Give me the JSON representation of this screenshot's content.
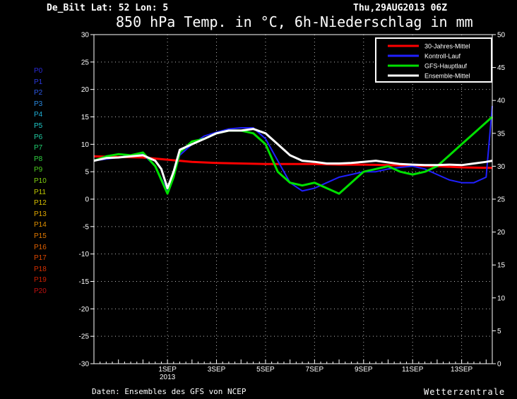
{
  "header": {
    "station": "De_Bilt  Lat: 52 Lon: 5",
    "datetime": "Thu,29AUG2013 06Z",
    "title": "850 hPa Temp. in °C, 6h-Niederschlag in mm"
  },
  "footer": {
    "source": "Daten: Ensembles des GFS von NCEP",
    "brand": "Wetterzentrale"
  },
  "members": [
    {
      "label": "P0",
      "color": "#2a2ad8"
    },
    {
      "label": "P1",
      "color": "#2a3ae0"
    },
    {
      "label": "P2",
      "color": "#2d5ae8"
    },
    {
      "label": "P3",
      "color": "#2a8ae0"
    },
    {
      "label": "P4",
      "color": "#20b0d8"
    },
    {
      "label": "P5",
      "color": "#20c8c8"
    },
    {
      "label": "P6",
      "color": "#20c8a0"
    },
    {
      "label": "P7",
      "color": "#20d070"
    },
    {
      "label": "P8",
      "color": "#30d040"
    },
    {
      "label": "P9",
      "color": "#50d020"
    },
    {
      "label": "P10",
      "color": "#80d010"
    },
    {
      "label": "P11",
      "color": "#c0c800"
    },
    {
      "label": "P12",
      "color": "#d8c000"
    },
    {
      "label": "P13",
      "color": "#e0a800"
    },
    {
      "label": "P14",
      "color": "#e09000"
    },
    {
      "label": "P15",
      "color": "#e07800"
    },
    {
      "label": "P16",
      "color": "#e06000"
    },
    {
      "label": "P17",
      "color": "#e04800"
    },
    {
      "label": "P18",
      "color": "#d83000"
    },
    {
      "label": "P19",
      "color": "#d02000"
    },
    {
      "label": "P20",
      "color": "#c01010"
    }
  ],
  "chart_data": {
    "type": "line",
    "xlabels": [
      "1SEP",
      "3SEP",
      "5SEP",
      "7SEP",
      "9SEP",
      "11SEP",
      "13SEP"
    ],
    "xsublabels": [
      "2013",
      "",
      "",
      "",
      "",
      "",
      ""
    ],
    "xlabel_day": [
      3,
      5,
      7,
      9,
      11,
      13,
      15
    ],
    "y_left": {
      "ticks": [
        30,
        25,
        20,
        15,
        10,
        5,
        0,
        -5,
        -10,
        -15,
        -20,
        -25,
        -30
      ],
      "ylim": [
        -30,
        30
      ]
    },
    "y_right": {
      "ticks": [
        50,
        45,
        40,
        35,
        30,
        25,
        20,
        15,
        10,
        5,
        0
      ],
      "ylim": [
        0,
        50
      ]
    },
    "x_range_days": [
      0,
      16.25
    ],
    "grid": true,
    "legend": {
      "position": "top-right",
      "entries": [
        {
          "name": "30-Jahres-Mittel",
          "color": "#ff0000"
        },
        {
          "name": "Kontroll-Lauf",
          "color": "#2020ff"
        },
        {
          "name": "GFS-Hauptlauf",
          "color": "#00e000"
        },
        {
          "name": "Ensemble-Mittel",
          "color": "#ffffff"
        }
      ]
    },
    "series": [
      {
        "name": "30-Jahres-Mittel",
        "color": "#ff0000",
        "width": 3,
        "days": [
          0,
          1,
          2,
          3,
          4,
          5,
          6,
          7,
          8,
          9,
          10,
          11,
          12,
          13,
          14,
          15,
          16.25
        ],
        "values": [
          7.8,
          7.7,
          7.6,
          7.2,
          6.8,
          6.6,
          6.5,
          6.4,
          6.4,
          6.4,
          6.3,
          6.3,
          6.2,
          6.1,
          6.0,
          5.8,
          5.7
        ]
      },
      {
        "name": "Ensemble-Mittel",
        "color": "#ffffff",
        "width": 3,
        "days": [
          0,
          0.5,
          1,
          1.5,
          2,
          2.5,
          2.75,
          3,
          3.25,
          3.5,
          4,
          4.5,
          5,
          5.5,
          6,
          6.5,
          7,
          7.5,
          8,
          8.5,
          9,
          9.5,
          10,
          10.5,
          11,
          11.5,
          12,
          12.5,
          13,
          13.5,
          14,
          14.5,
          15,
          15.5,
          16,
          16.25
        ],
        "values": [
          7,
          7.5,
          7.6,
          7.8,
          8,
          7,
          5.5,
          2,
          5,
          9,
          10,
          11,
          12,
          12.5,
          12.5,
          12.8,
          12,
          10,
          8,
          7,
          6.8,
          6.5,
          6.5,
          6.6,
          6.8,
          7,
          6.7,
          6.4,
          6.3,
          6.2,
          6.2,
          6.3,
          6.2,
          6.5,
          6.8,
          7
        ]
      },
      {
        "name": "Kontroll-Lauf",
        "color": "#2020ff",
        "width": 2,
        "days": [
          0,
          0.5,
          1,
          1.5,
          2,
          2.5,
          3,
          3.25,
          3.5,
          4,
          4.5,
          5,
          5.5,
          6,
          6.5,
          7,
          7.5,
          8,
          8.5,
          9,
          9.5,
          10,
          10.5,
          11,
          11.5,
          12,
          12.5,
          13,
          13.5,
          14,
          14.5,
          15,
          15.5,
          16,
          16.25
        ],
        "values": [
          7,
          7.3,
          7.6,
          8,
          8.2,
          6,
          1.5,
          4,
          8,
          10,
          11.5,
          12.2,
          12.8,
          13,
          13,
          11,
          7,
          3,
          1.5,
          2,
          3,
          4,
          4.5,
          5,
          5,
          5.5,
          5.8,
          6,
          5.5,
          4.5,
          3.5,
          3,
          3,
          4,
          17
        ]
      },
      {
        "name": "GFS-Hauptlauf",
        "color": "#00e000",
        "width": 3,
        "days": [
          0,
          0.5,
          1,
          1.5,
          2,
          2.5,
          3,
          3.25,
          3.5,
          4,
          4.5,
          5,
          5.5,
          6,
          6.5,
          7,
          7.5,
          8,
          8.5,
          9,
          9.5,
          10,
          10.5,
          11,
          11.5,
          12,
          12.5,
          13,
          13.5,
          14,
          14.5,
          15,
          15.5,
          16,
          16.25
        ],
        "values": [
          7,
          7.8,
          8.2,
          8,
          8.5,
          6,
          1,
          4,
          8.5,
          10.5,
          11,
          12,
          12.5,
          12.5,
          12,
          10,
          5,
          3,
          2.5,
          3,
          2,
          1,
          3,
          5,
          5.5,
          6,
          5,
          4.5,
          5,
          6,
          8,
          10,
          12,
          14,
          15
        ]
      }
    ]
  }
}
